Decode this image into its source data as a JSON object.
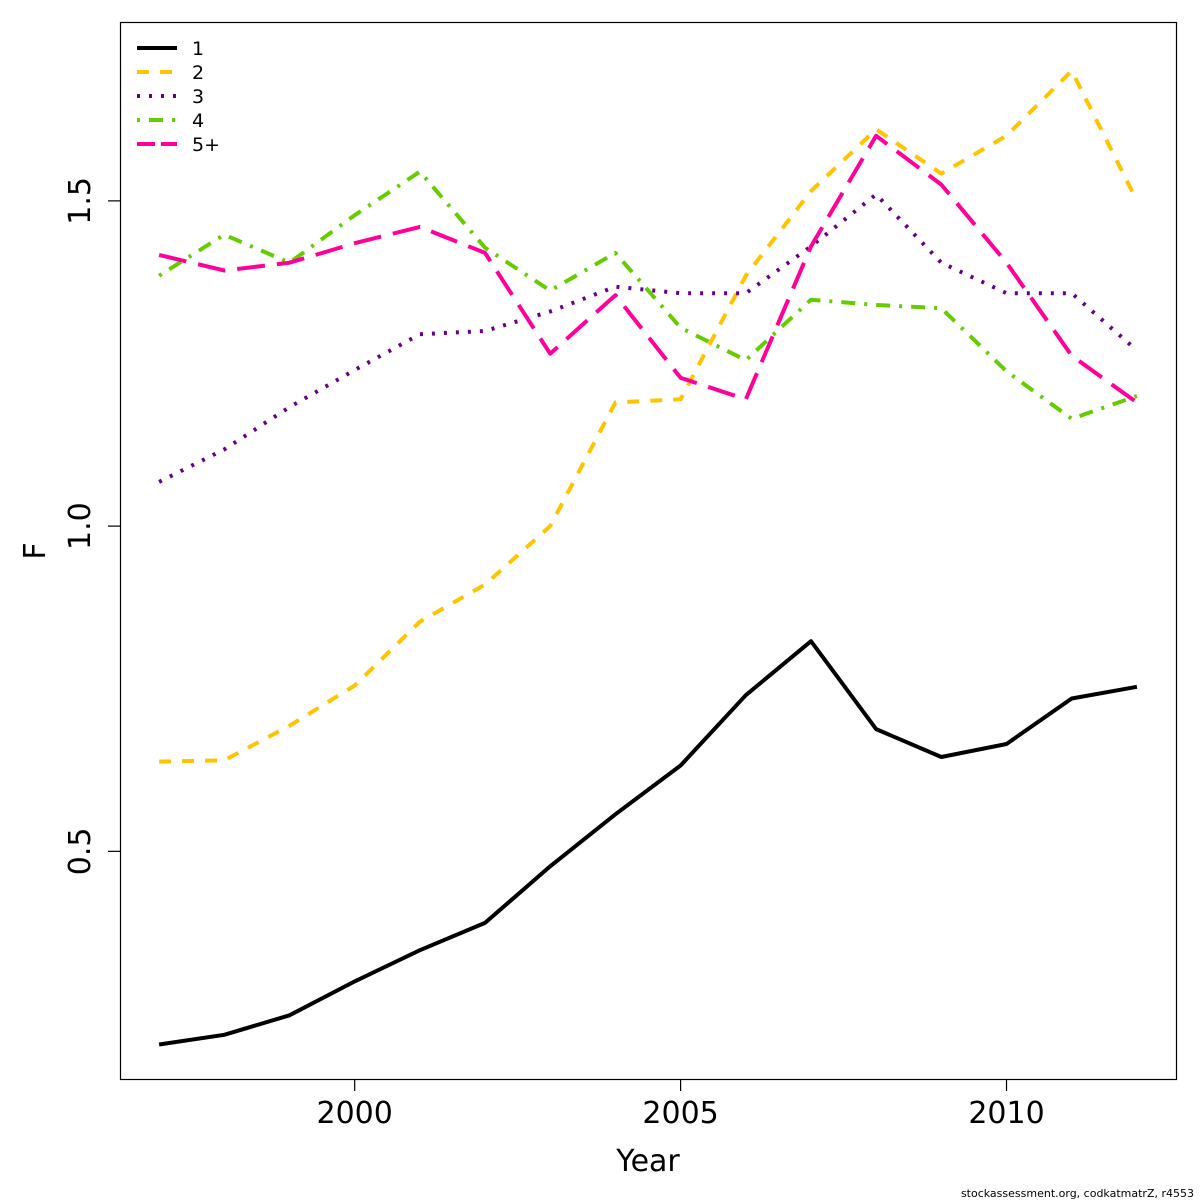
{
  "chart_data": {
    "type": "line",
    "xlabel": "Year",
    "ylabel": "F",
    "xlim": [
      1996.4,
      2012.6
    ],
    "ylim": [
      0.15,
      1.775
    ],
    "x_ticks": [
      2000,
      2005,
      2010
    ],
    "x_tick_labels": [
      "2000",
      "2005",
      "2010"
    ],
    "y_ticks": [
      0.5,
      1.0,
      1.5
    ],
    "y_tick_labels": [
      "0.5",
      "1.0",
      "1.5"
    ],
    "grid": false,
    "legend_position": "top-left",
    "x": [
      1997,
      1998,
      1999,
      2000,
      2001,
      2002,
      2003,
      2004,
      2005,
      2006,
      2007,
      2008,
      2009,
      2010,
      2011,
      2012
    ],
    "series": [
      {
        "name": "1",
        "color": "#000000",
        "dash": "solid",
        "values": [
          0.203,
          0.218,
          0.248,
          0.3,
          0.348,
          0.39,
          0.477,
          0.557,
          0.632,
          0.74,
          0.823,
          0.688,
          0.645,
          0.665,
          0.735,
          0.753
        ]
      },
      {
        "name": "2",
        "color": "#FFC300",
        "dash": "dashed",
        "values": [
          0.638,
          0.64,
          0.693,
          0.755,
          0.853,
          0.91,
          1.0,
          1.19,
          1.195,
          1.385,
          1.515,
          1.61,
          1.542,
          1.6,
          1.7,
          1.5
        ]
      },
      {
        "name": "3",
        "color": "#66008C",
        "dash": "dotted",
        "values": [
          1.068,
          1.118,
          1.183,
          1.24,
          1.295,
          1.3,
          1.33,
          1.368,
          1.358,
          1.358,
          1.43,
          1.51,
          1.405,
          1.358,
          1.358,
          1.27
        ]
      },
      {
        "name": "4",
        "color": "#66CC00",
        "dash": "dotdash",
        "values": [
          1.385,
          1.448,
          1.405,
          1.478,
          1.545,
          1.428,
          1.362,
          1.42,
          1.305,
          1.255,
          1.348,
          1.34,
          1.335,
          1.238,
          1.165,
          1.2
        ]
      },
      {
        "name": "5+",
        "color": "#FF0099",
        "dash": "longdash",
        "values": [
          1.417,
          1.393,
          1.405,
          1.435,
          1.46,
          1.42,
          1.265,
          1.355,
          1.228,
          1.195,
          1.43,
          1.6,
          1.525,
          1.405,
          1.262,
          1.19
        ]
      }
    ]
  },
  "footer": {
    "note": "stockassessment.org, codkatmatrZ, r4553"
  }
}
